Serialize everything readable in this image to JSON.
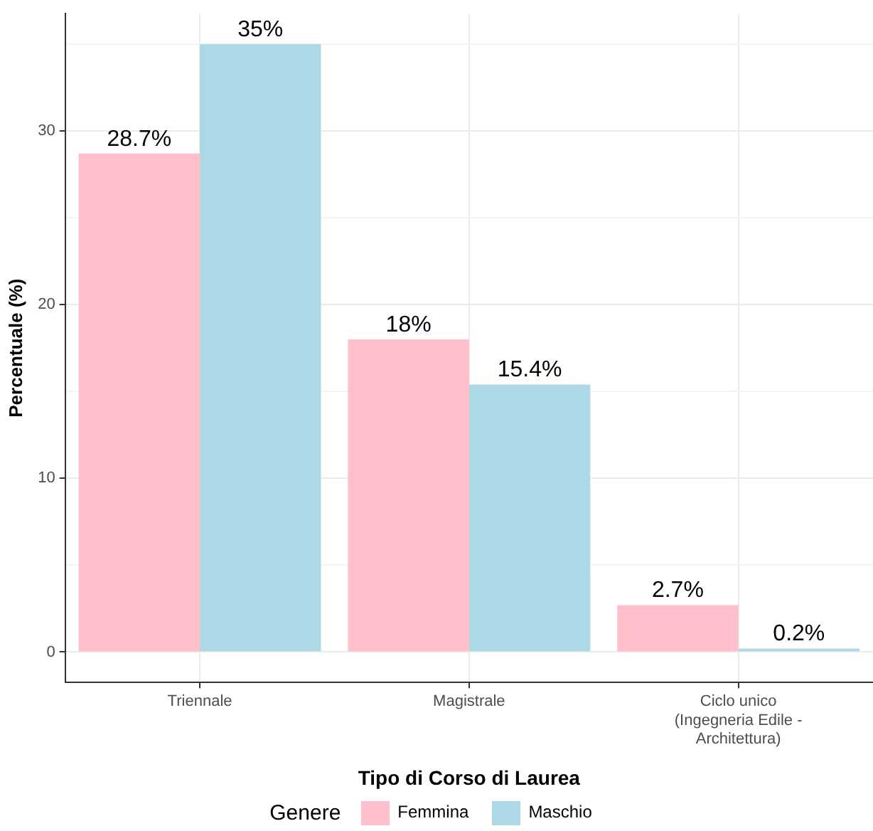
{
  "chart_data": {
    "type": "bar",
    "xlabel": "Tipo di Corso di Laurea",
    "ylabel": "Percentuale (%)",
    "legend_title": "Genere",
    "legend": "bottom",
    "grid": true,
    "categories": [
      "Triennale",
      "Magistrale",
      "Ciclo unico\n(Ingegneria Edile -\nArchitettura)"
    ],
    "series": [
      {
        "name": "Femmina",
        "color": "#ffc0cb",
        "values": [
          28.7,
          18,
          2.7
        ],
        "value_labels": [
          "28.7%",
          "18%",
          "2.7%"
        ]
      },
      {
        "name": "Maschio",
        "color": "#add8e6",
        "values": [
          35,
          15.4,
          0.2
        ],
        "value_labels": [
          "35%",
          "15.4%",
          "0.2%"
        ]
      }
    ],
    "ylim": [
      -1.75,
      36.75
    ],
    "yticks": [
      0,
      {
        "value": 5,
        "label": null
      },
      10,
      {
        "value": 15,
        "label": null
      },
      20,
      {
        "value": 25,
        "label": null
      },
      30,
      {
        "value": 35,
        "label": null
      }
    ]
  }
}
